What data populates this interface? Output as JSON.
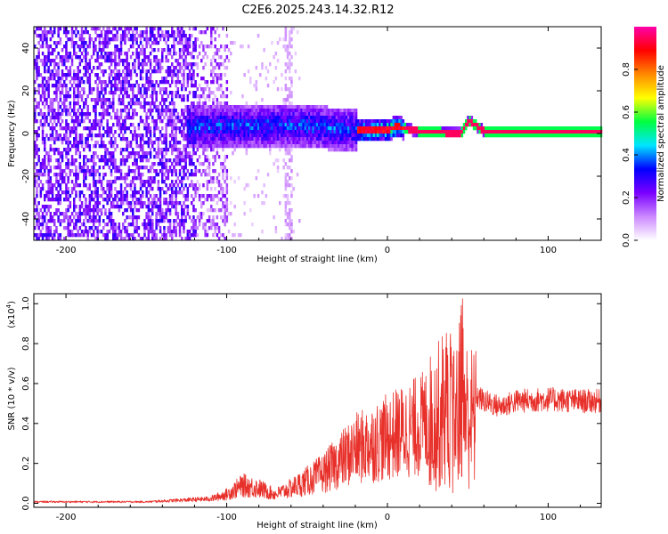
{
  "title": "C2E6.2025.243.14.32.R12",
  "chart_data": [
    {
      "type": "heatmap",
      "name": "spectrogram",
      "xlabel": "Height of straight line (km)",
      "ylabel": "Frequency (Hz)",
      "xlim": [
        -220,
        133
      ],
      "ylim": [
        -50,
        50
      ],
      "x_ticks": [
        -200,
        -100,
        0,
        100
      ],
      "y_ticks": [
        -40,
        -20,
        0,
        20,
        40
      ],
      "colorbar": {
        "label": "Normalized spectral amplitude",
        "range": [
          0,
          1
        ],
        "ticks": [
          0.0,
          0.2,
          0.4,
          0.6,
          0.8
        ],
        "tick_labels": [
          "0.0",
          "0.2",
          "0.4",
          "0.6",
          "0.8"
        ],
        "colormap": [
          "#ffffff",
          "#cc88ff",
          "#7a00ff",
          "#0000ff",
          "#00e5ff",
          "#00ff40",
          "#ffff00",
          "#ff8800",
          "#ff0000",
          "#ff00aa"
        ]
      },
      "description_points": {
        "noise_floor_until_km": -100,
        "signal_center_hz": [
          [
            -110,
            3
          ],
          [
            -60,
            4
          ],
          [
            -30,
            2
          ],
          [
            -10,
            1
          ],
          [
            0,
            2
          ],
          [
            5,
            3
          ],
          [
            20,
            1
          ],
          [
            45,
            0
          ],
          [
            50,
            6
          ],
          [
            60,
            1
          ],
          [
            133,
            1
          ]
        ]
      }
    },
    {
      "type": "line",
      "name": "snr",
      "xlabel": "Height of straight line (km)",
      "ylabel": "SNR (10 * v/v)",
      "multiplier_label": "(x10",
      "multiplier_exp": "4",
      "multiplier_close": ")",
      "xlim": [
        -220,
        133
      ],
      "ylim": [
        -0.02,
        1.05
      ],
      "x_ticks": [
        -200,
        -100,
        0,
        100
      ],
      "y_ticks": [
        0.0,
        0.2,
        0.4,
        0.6,
        0.8,
        1.0
      ],
      "y_tick_labels": [
        "0.0",
        "0.2",
        "0.4",
        "0.6",
        "0.8",
        "1.0"
      ],
      "x_tick_labels": [
        "-200",
        "-100",
        "0",
        "100"
      ],
      "series": [
        {
          "name": "SNR",
          "color": "#e8302a",
          "envelope_x": [
            -220,
            -150,
            -110,
            -100,
            -90,
            -80,
            -70,
            -60,
            -50,
            -40,
            -30,
            -20,
            -10,
            0,
            10,
            20,
            30,
            38,
            42,
            46,
            50,
            55,
            60,
            70,
            80,
            100,
            120,
            133
          ],
          "envelope_y": [
            0.01,
            0.01,
            0.03,
            0.06,
            0.12,
            0.1,
            0.06,
            0.1,
            0.15,
            0.2,
            0.28,
            0.36,
            0.4,
            0.44,
            0.48,
            0.52,
            0.58,
            0.7,
            0.55,
            0.75,
            0.6,
            0.58,
            0.55,
            0.52,
            0.55,
            0.56,
            0.55,
            0.55
          ]
        }
      ]
    }
  ]
}
